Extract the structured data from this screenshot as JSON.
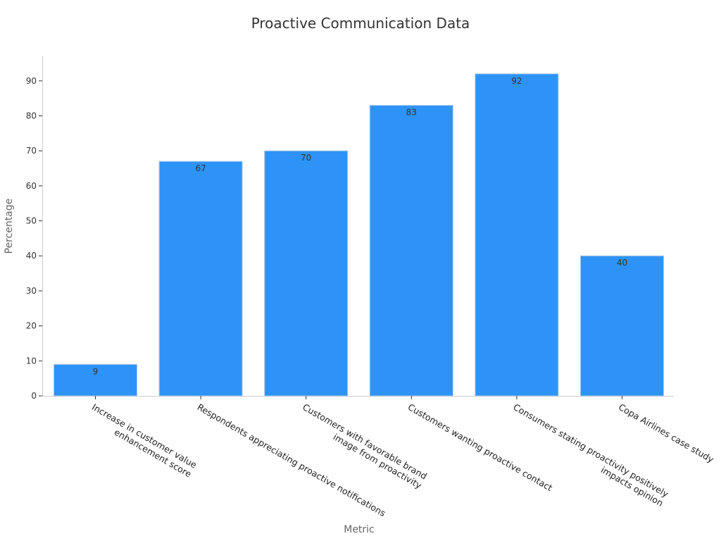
{
  "chart_data": {
    "type": "bar",
    "title": "Proactive Communication Data",
    "xlabel": "Metric",
    "ylabel": "Percentage",
    "categories": [
      [
        "Increase in customer value",
        "enhancement score"
      ],
      [
        "Respondents appreciating proactive notifications"
      ],
      [
        "Customers with favorable brand",
        "image from proactivity"
      ],
      [
        "Customers wanting proactive contact"
      ],
      [
        "Consumers stating proactivity positively",
        "impacts opinion"
      ],
      [
        "Copa Airlines case study"
      ]
    ],
    "values": [
      9,
      67,
      70,
      83,
      92,
      40
    ],
    "ylim": [
      0,
      97
    ],
    "yticks": [
      0,
      10,
      20,
      30,
      40,
      50,
      60,
      70,
      80,
      90
    ],
    "grid": false,
    "legend": "none",
    "bar_color": "#2e93f7",
    "bar_edge_color": "#a9c9ea"
  }
}
